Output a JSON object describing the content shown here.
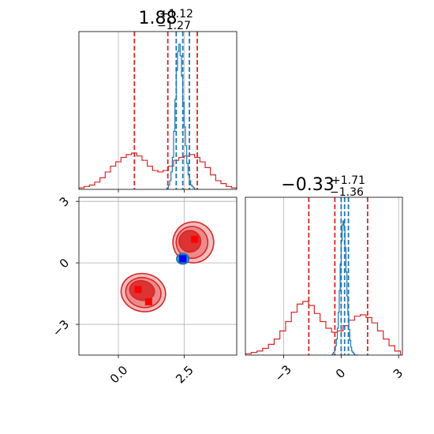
{
  "colors": {
    "posterior_a": "#d62728",
    "posterior_b": "#1f77b4",
    "marker_a": "#ff0000",
    "marker_b": "#0000ff",
    "grid": "#b0b0b0"
  },
  "chart_data": [
    {
      "panel": "marginal-param-1",
      "type": "step-histogram",
      "title": {
        "value": "1.88",
        "plus": "+1.12",
        "minus": "−1.27"
      },
      "xlim": [
        -1.5,
        4.5
      ],
      "grid": true,
      "series": [
        {
          "color": "#d62728",
          "bins_x": [
            -1.5,
            -1.3,
            -1.1,
            -0.9,
            -0.7,
            -0.5,
            -0.3,
            -0.1,
            0.1,
            0.3,
            0.5,
            0.7,
            0.9,
            1.1,
            1.3,
            1.5,
            1.7,
            1.9,
            2.1,
            2.3,
            2.5,
            2.7,
            2.9,
            3.1,
            3.3,
            3.5,
            3.7,
            3.9,
            4.1,
            4.3,
            4.5
          ],
          "counts": [
            0.01,
            0.02,
            0.03,
            0.05,
            0.08,
            0.12,
            0.16,
            0.19,
            0.22,
            0.24,
            0.25,
            0.23,
            0.2,
            0.16,
            0.13,
            0.12,
            0.13,
            0.16,
            0.2,
            0.22,
            0.23,
            0.24,
            0.22,
            0.19,
            0.15,
            0.1,
            0.06,
            0.04,
            0.02,
            0.01
          ],
          "quantiles": [
            0.61,
            1.88,
            3.0
          ]
        },
        {
          "color": "#1f77b4",
          "bins_x": [
            1.8,
            1.85,
            1.9,
            1.95,
            2.0,
            2.05,
            2.1,
            2.15,
            2.2,
            2.25,
            2.3,
            2.35,
            2.4,
            2.45,
            2.5,
            2.55,
            2.6,
            2.65,
            2.7,
            2.75,
            2.8,
            2.85,
            2.9,
            2.95,
            3.0
          ],
          "counts": [
            0.0,
            0.01,
            0.03,
            0.06,
            0.12,
            0.22,
            0.4,
            0.62,
            0.82,
            0.95,
            1.0,
            0.92,
            0.78,
            0.6,
            0.43,
            0.3,
            0.18,
            0.1,
            0.06,
            0.03,
            0.02,
            0.01,
            0.0,
            0.0
          ],
          "quantiles": [
            2.2,
            2.45,
            2.7
          ]
        }
      ]
    },
    {
      "panel": "marginal-param-2",
      "type": "step-histogram",
      "title": {
        "value": "−0.33",
        "plus": "+1.71",
        "minus": "−1.36"
      },
      "xlim": [
        -5.0,
        3.2
      ],
      "xticks": [
        -3,
        0,
        3
      ],
      "xtick_labels": [
        "−3",
        "0",
        "3"
      ],
      "grid": true,
      "series": [
        {
          "color": "#d62728",
          "bins_x": [
            -5.0,
            -4.7,
            -4.4,
            -4.1,
            -3.8,
            -3.5,
            -3.2,
            -2.9,
            -2.6,
            -2.3,
            -2.0,
            -1.7,
            -1.4,
            -1.1,
            -0.8,
            -0.5,
            -0.2,
            0.1,
            0.4,
            0.7,
            1.0,
            1.3,
            1.6,
            1.9,
            2.2,
            2.5,
            2.8,
            3.1
          ],
          "counts": [
            0.01,
            0.02,
            0.03,
            0.05,
            0.08,
            0.12,
            0.18,
            0.25,
            0.32,
            0.38,
            0.4,
            0.37,
            0.31,
            0.25,
            0.2,
            0.17,
            0.18,
            0.22,
            0.26,
            0.29,
            0.3,
            0.28,
            0.24,
            0.18,
            0.12,
            0.07,
            0.03
          ],
          "quantiles": [
            -1.69,
            -0.33,
            1.38
          ]
        },
        {
          "color": "#1f77b4",
          "bins_x": [
            -0.5,
            -0.45,
            -0.4,
            -0.35,
            -0.3,
            -0.25,
            -0.2,
            -0.15,
            -0.1,
            -0.05,
            0.0,
            0.05,
            0.1,
            0.15,
            0.2,
            0.25,
            0.3,
            0.35,
            0.4,
            0.45,
            0.5,
            0.55,
            0.6,
            0.65,
            0.7,
            0.75,
            0.8,
            0.85,
            0.9
          ],
          "counts": [
            0.0,
            0.01,
            0.02,
            0.04,
            0.07,
            0.12,
            0.2,
            0.32,
            0.48,
            0.68,
            0.85,
            0.97,
            1.0,
            0.93,
            0.8,
            0.62,
            0.44,
            0.3,
            0.19,
            0.11,
            0.06,
            0.03,
            0.02,
            0.01,
            0.0,
            0.0,
            0.0,
            0.0
          ],
          "quantiles": [
            0.0,
            0.18,
            0.38
          ]
        }
      ]
    },
    {
      "panel": "joint-param-1-param-2",
      "type": "contour",
      "xlim": [
        -1.5,
        4.5
      ],
      "ylim": [
        -4.5,
        3.2
      ],
      "xticks": [
        0.0,
        2.5
      ],
      "xtick_labels": [
        "0.0",
        "2.5"
      ],
      "yticks": [
        -3,
        0,
        3
      ],
      "ytick_labels": [
        "−3",
        "0",
        "3"
      ],
      "grid": true,
      "series": [
        {
          "color": "#d62728",
          "levels": [
            {
              "fill": "#f4bcbc",
              "clusters": [
                {
                  "cx": 2.85,
                  "cy": 1.0,
                  "rx": 1.55,
                  "ry": 2.0,
                  "rot": -8
                },
                {
                  "cx": 0.95,
                  "cy": -1.45,
                  "rx": 1.7,
                  "ry": 1.85,
                  "rot": 12
                }
              ]
            },
            {
              "fill": "#ee8a8a",
              "clusters": [
                {
                  "cx": 2.8,
                  "cy": 1.0,
                  "rx": 1.2,
                  "ry": 1.55,
                  "rot": -8
                },
                {
                  "cx": 0.95,
                  "cy": -1.45,
                  "rx": 1.35,
                  "ry": 1.45,
                  "rot": 12
                }
              ]
            },
            {
              "fill": "#dd3333",
              "clusters": [
                {
                  "cx": 2.72,
                  "cy": 1.05,
                  "rx": 0.82,
                  "ry": 1.05,
                  "rot": -8
                },
                {
                  "cx": 0.9,
                  "cy": -1.35,
                  "rx": 0.95,
                  "ry": 0.95,
                  "rot": 12
                }
              ]
            }
          ],
          "markers": [
            {
              "x": 2.9,
              "y": 1.15
            },
            {
              "x": 0.75,
              "y": -1.3
            },
            {
              "x": 1.15,
              "y": -1.9
            }
          ]
        },
        {
          "color": "#1f77b4",
          "levels": [
            {
              "cx": 2.45,
              "cy": 0.2,
              "rx": 0.45,
              "ry": 0.5
            },
            {
              "cx": 2.45,
              "cy": 0.2,
              "rx": 0.3,
              "ry": 0.35
            },
            {
              "cx": 2.45,
              "cy": 0.2,
              "rx": 0.18,
              "ry": 0.2
            }
          ],
          "markers": [
            {
              "x": 2.45,
              "y": 0.2
            }
          ]
        }
      ]
    }
  ]
}
